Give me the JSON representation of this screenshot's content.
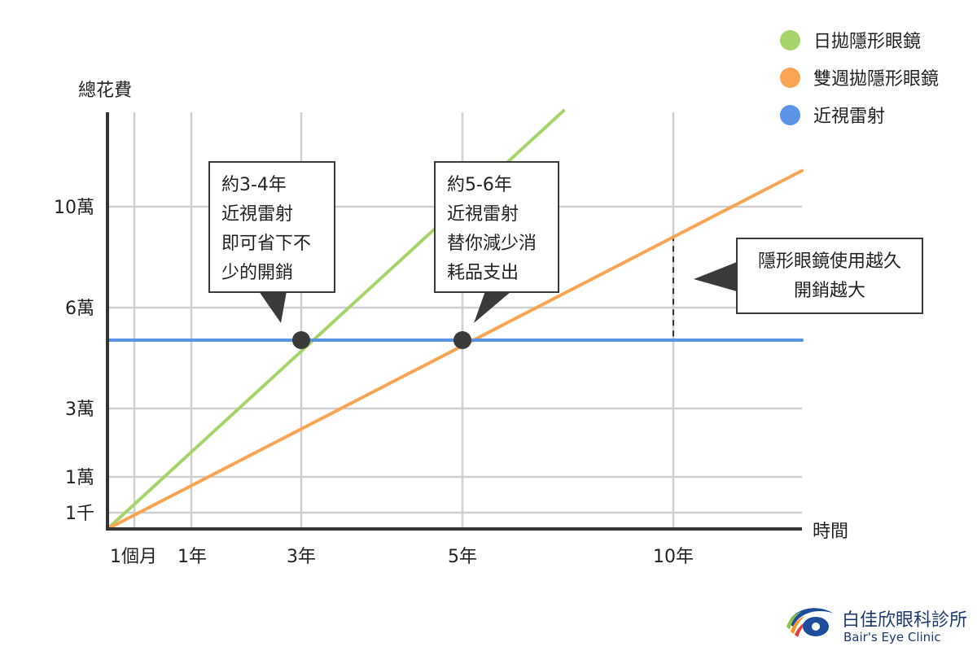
{
  "chart_data": {
    "type": "line",
    "ylabel": "總花費",
    "xlabel": "時間",
    "x_ticks": [
      {
        "label": "1個月",
        "x": 0.0833
      },
      {
        "label": "1年",
        "x": 1
      },
      {
        "label": "3年",
        "x": 3
      },
      {
        "label": "5年",
        "x": 5
      },
      {
        "label": "10年",
        "x": 10
      }
    ],
    "y_ticks": [
      {
        "label": "1千",
        "y": 1000
      },
      {
        "label": "1萬",
        "y": 10000
      },
      {
        "label": "3萬",
        "y": 30000
      },
      {
        "label": "6萬",
        "y": 60000
      },
      {
        "label": "10萬",
        "y": 100000
      }
    ],
    "series": [
      {
        "name": "日拋隱形眼鏡",
        "color": "#a6d46b",
        "points": [
          [
            0,
            0
          ],
          [
            7.4,
            124000
          ]
        ]
      },
      {
        "name": "雙週拋隱形眼鏡",
        "color": "#fba554",
        "points": [
          [
            0,
            0
          ],
          [
            12.3,
            109000
          ]
        ]
      },
      {
        "name": "近視雷射",
        "color": "#5b93e6",
        "points": [
          [
            0,
            50000
          ],
          [
            12.3,
            50000
          ]
        ]
      }
    ],
    "markers": [
      {
        "x": 3,
        "y": 50000
      },
      {
        "x": 5,
        "y": 50000
      }
    ],
    "annotations": [
      {
        "lines": [
          "約3-4年",
          "近視雷射",
          "即可省下不",
          "少的開銷"
        ]
      },
      {
        "lines": [
          "約5-6年",
          "近視雷射",
          "替你減少消",
          "耗品支出"
        ]
      },
      {
        "lines": [
          "隱形眼鏡使用越久",
          "開銷越大"
        ]
      }
    ],
    "grid": true
  },
  "logo": {
    "name": "白佳欣眼科診所",
    "subtitle": "Bair's Eye Clinic"
  }
}
